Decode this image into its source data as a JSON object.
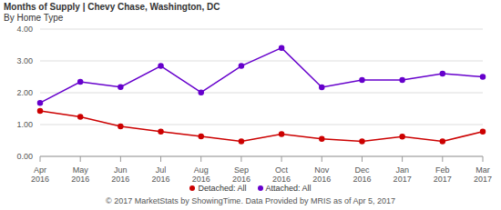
{
  "chart_data": {
    "type": "line",
    "title": "Months of Supply | Chevy Chase, Washington, DC",
    "subtitle": "By Home Type",
    "annotation": "© 2017 MarketStats by ShowingTime. Data Provided by MRIS as of Apr 5, 2017",
    "categories": [
      "Apr 2016",
      "May 2016",
      "Jun 2016",
      "Jul 2016",
      "Aug 2016",
      "Sep 2016",
      "Oct 2016",
      "Nov 2016",
      "Dec 2016",
      "Jan 2017",
      "Feb 2017",
      "Mar 2017"
    ],
    "series": [
      {
        "name": "Detached: All",
        "color": "#cc0000",
        "values": [
          1.43,
          1.24,
          0.94,
          0.78,
          0.63,
          0.47,
          0.7,
          0.55,
          0.47,
          0.62,
          0.47,
          0.78
        ]
      },
      {
        "name": "Attached: All",
        "color": "#6600cc",
        "values": [
          1.68,
          2.34,
          2.18,
          2.84,
          2.01,
          2.84,
          3.41,
          2.17,
          2.4,
          2.4,
          2.6,
          2.5
        ]
      }
    ],
    "ylim": [
      0,
      4
    ],
    "yticks": [
      {
        "value": 0,
        "label": "0.00"
      },
      {
        "value": 1,
        "label": "1.00"
      },
      {
        "value": 2,
        "label": "2.00"
      },
      {
        "value": 3,
        "label": "3.00"
      },
      {
        "value": 4,
        "label": "4.00"
      }
    ],
    "grid": true,
    "legend": "bottom",
    "marker": "circle"
  }
}
